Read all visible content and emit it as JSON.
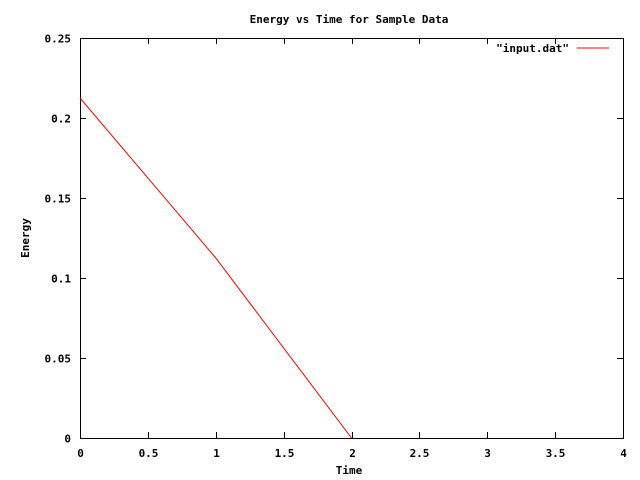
{
  "chart_data": {
    "type": "line",
    "title": "Energy vs Time for Sample Data",
    "xlabel": "Time",
    "ylabel": "Energy",
    "xlim": [
      0,
      4
    ],
    "ylim": [
      0,
      0.25
    ],
    "x_ticks": [
      0,
      0.5,
      1,
      1.5,
      2,
      2.5,
      3,
      3.5,
      4
    ],
    "x_tick_labels": [
      "0",
      "0.5",
      "1",
      "1.5",
      "2",
      "2.5",
      "3",
      "3.5",
      "4"
    ],
    "y_ticks": [
      0,
      0.05,
      0.1,
      0.15,
      0.2,
      0.25
    ],
    "y_tick_labels": [
      "0",
      "0.05",
      "0.1",
      "0.15",
      "0.2",
      "0.25"
    ],
    "grid": false,
    "legend_position": "top-right",
    "series": [
      {
        "name": "\"input.dat\"",
        "color": "#ff0000",
        "x": [
          0,
          1,
          2
        ],
        "y": [
          0.2125,
          0.1125,
          0
        ]
      }
    ]
  }
}
